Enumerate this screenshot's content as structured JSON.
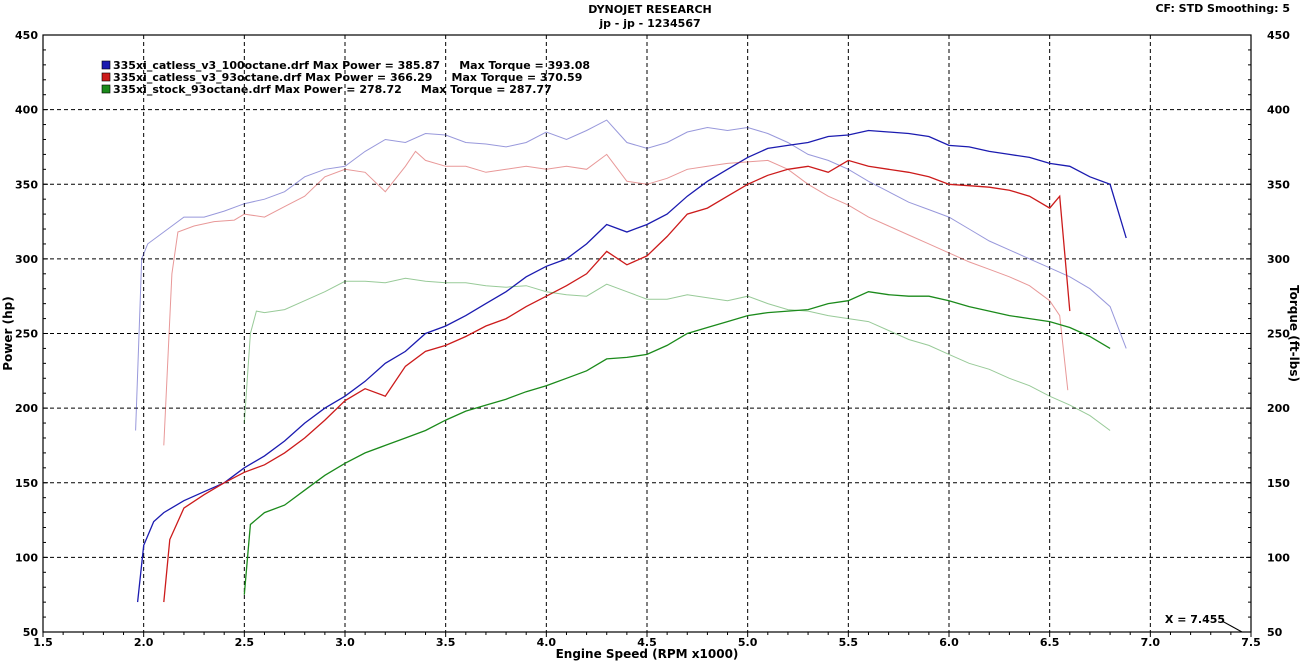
{
  "header": {
    "title": "DYNOJET RESEARCH",
    "subtitle": "jp - jp - 1234567",
    "correction": "CF: STD  Smoothing: 5"
  },
  "cursor": {
    "label": "X = 7.455"
  },
  "chart_data": {
    "type": "line",
    "title": "DYNOJET RESEARCH",
    "xlabel": "Engine Speed (RPM x1000)",
    "ylabel": "Power (hp)",
    "y2label": "Torque (ft-lbs)",
    "xlim": [
      1.5,
      7.5
    ],
    "ylim": [
      50,
      450
    ],
    "y2lim": [
      50,
      450
    ],
    "xticks": [
      1.5,
      2.0,
      2.5,
      3.0,
      3.5,
      4.0,
      4.5,
      5.0,
      5.5,
      6.0,
      6.5,
      7.0,
      7.5
    ],
    "yticks": [
      50,
      100,
      150,
      200,
      250,
      300,
      350,
      400,
      450
    ],
    "grid": true,
    "legend_position": "top-left",
    "legend": [
      "335xi_catless_v3_100octane.drf Max Power = 385.87     Max Torque = 393.08",
      "335xi_catless_v3_93octane.drf Max Power = 366.29     Max Torque = 370.59",
      "335xi_stock_93octane.drf Max Power = 278.72     Max Torque = 287.77"
    ],
    "series": [
      {
        "name": "335xi_catless_v3_100octane.drf",
        "color": "#1b1bb0",
        "max_power": 385.87,
        "max_torque": 393.08,
        "power": [
          [
            1.97,
            70
          ],
          [
            2.0,
            108
          ],
          [
            2.05,
            124
          ],
          [
            2.1,
            130
          ],
          [
            2.2,
            138
          ],
          [
            2.3,
            144
          ],
          [
            2.4,
            150
          ],
          [
            2.5,
            160
          ],
          [
            2.6,
            168
          ],
          [
            2.7,
            178
          ],
          [
            2.8,
            190
          ],
          [
            2.9,
            200
          ],
          [
            3.0,
            208
          ],
          [
            3.1,
            218
          ],
          [
            3.2,
            230
          ],
          [
            3.3,
            238
          ],
          [
            3.4,
            250
          ],
          [
            3.5,
            255
          ],
          [
            3.6,
            262
          ],
          [
            3.7,
            270
          ],
          [
            3.8,
            278
          ],
          [
            3.9,
            288
          ],
          [
            4.0,
            295
          ],
          [
            4.1,
            300
          ],
          [
            4.2,
            310
          ],
          [
            4.3,
            323
          ],
          [
            4.4,
            318
          ],
          [
            4.5,
            323
          ],
          [
            4.6,
            330
          ],
          [
            4.7,
            342
          ],
          [
            4.8,
            352
          ],
          [
            4.9,
            360
          ],
          [
            5.0,
            368
          ],
          [
            5.1,
            374
          ],
          [
            5.2,
            376
          ],
          [
            5.3,
            378
          ],
          [
            5.4,
            382
          ],
          [
            5.5,
            383
          ],
          [
            5.6,
            386
          ],
          [
            5.7,
            385
          ],
          [
            5.8,
            384
          ],
          [
            5.9,
            382
          ],
          [
            6.0,
            376
          ],
          [
            6.1,
            375
          ],
          [
            6.2,
            372
          ],
          [
            6.3,
            370
          ],
          [
            6.4,
            368
          ],
          [
            6.5,
            364
          ],
          [
            6.6,
            362
          ],
          [
            6.7,
            355
          ],
          [
            6.8,
            350
          ],
          [
            6.88,
            314
          ]
        ],
        "torque": [
          [
            1.96,
            185
          ],
          [
            1.99,
            300
          ],
          [
            2.02,
            310
          ],
          [
            2.1,
            318
          ],
          [
            2.2,
            328
          ],
          [
            2.3,
            328
          ],
          [
            2.4,
            332
          ],
          [
            2.5,
            337
          ],
          [
            2.6,
            340
          ],
          [
            2.7,
            345
          ],
          [
            2.8,
            355
          ],
          [
            2.9,
            360
          ],
          [
            3.0,
            362
          ],
          [
            3.1,
            372
          ],
          [
            3.2,
            380
          ],
          [
            3.3,
            378
          ],
          [
            3.4,
            384
          ],
          [
            3.5,
            383
          ],
          [
            3.6,
            378
          ],
          [
            3.7,
            377
          ],
          [
            3.8,
            375
          ],
          [
            3.9,
            378
          ],
          [
            4.0,
            385
          ],
          [
            4.1,
            380
          ],
          [
            4.2,
            386
          ],
          [
            4.3,
            393
          ],
          [
            4.4,
            378
          ],
          [
            4.5,
            374
          ],
          [
            4.6,
            378
          ],
          [
            4.7,
            385
          ],
          [
            4.8,
            388
          ],
          [
            4.9,
            386
          ],
          [
            5.0,
            388
          ],
          [
            5.1,
            384
          ],
          [
            5.2,
            378
          ],
          [
            5.3,
            370
          ],
          [
            5.4,
            366
          ],
          [
            5.5,
            360
          ],
          [
            5.6,
            352
          ],
          [
            5.7,
            345
          ],
          [
            5.8,
            338
          ],
          [
            5.9,
            333
          ],
          [
            6.0,
            328
          ],
          [
            6.1,
            320
          ],
          [
            6.2,
            312
          ],
          [
            6.3,
            306
          ],
          [
            6.4,
            300
          ],
          [
            6.5,
            294
          ],
          [
            6.6,
            288
          ],
          [
            6.7,
            280
          ],
          [
            6.8,
            268
          ],
          [
            6.88,
            240
          ]
        ]
      },
      {
        "name": "335xi_catless_v3_93octane.drf",
        "color": "#cc1b1b",
        "max_power": 366.29,
        "max_torque": 370.59,
        "power": [
          [
            2.1,
            70
          ],
          [
            2.13,
            112
          ],
          [
            2.2,
            133
          ],
          [
            2.3,
            142
          ],
          [
            2.4,
            150
          ],
          [
            2.5,
            157
          ],
          [
            2.6,
            162
          ],
          [
            2.7,
            170
          ],
          [
            2.8,
            180
          ],
          [
            2.9,
            192
          ],
          [
            3.0,
            205
          ],
          [
            3.1,
            213
          ],
          [
            3.2,
            208
          ],
          [
            3.3,
            228
          ],
          [
            3.4,
            238
          ],
          [
            3.5,
            242
          ],
          [
            3.6,
            248
          ],
          [
            3.7,
            255
          ],
          [
            3.8,
            260
          ],
          [
            3.9,
            268
          ],
          [
            4.0,
            275
          ],
          [
            4.1,
            282
          ],
          [
            4.2,
            290
          ],
          [
            4.3,
            305
          ],
          [
            4.4,
            296
          ],
          [
            4.5,
            302
          ],
          [
            4.6,
            315
          ],
          [
            4.7,
            330
          ],
          [
            4.8,
            334
          ],
          [
            4.9,
            342
          ],
          [
            5.0,
            350
          ],
          [
            5.1,
            356
          ],
          [
            5.2,
            360
          ],
          [
            5.3,
            362
          ],
          [
            5.4,
            358
          ],
          [
            5.5,
            366
          ],
          [
            5.6,
            362
          ],
          [
            5.7,
            360
          ],
          [
            5.8,
            358
          ],
          [
            5.9,
            355
          ],
          [
            6.0,
            350
          ],
          [
            6.1,
            349
          ],
          [
            6.2,
            348
          ],
          [
            6.3,
            346
          ],
          [
            6.4,
            342
          ],
          [
            6.5,
            334
          ],
          [
            6.55,
            342
          ],
          [
            6.6,
            265
          ]
        ],
        "torque": [
          [
            2.1,
            175
          ],
          [
            2.14,
            290
          ],
          [
            2.17,
            318
          ],
          [
            2.25,
            322
          ],
          [
            2.35,
            325
          ],
          [
            2.45,
            326
          ],
          [
            2.5,
            330
          ],
          [
            2.6,
            328
          ],
          [
            2.7,
            335
          ],
          [
            2.8,
            342
          ],
          [
            2.9,
            355
          ],
          [
            3.0,
            360
          ],
          [
            3.1,
            358
          ],
          [
            3.2,
            345
          ],
          [
            3.3,
            362
          ],
          [
            3.35,
            372
          ],
          [
            3.4,
            366
          ],
          [
            3.5,
            362
          ],
          [
            3.6,
            362
          ],
          [
            3.7,
            358
          ],
          [
            3.8,
            360
          ],
          [
            3.9,
            362
          ],
          [
            4.0,
            360
          ],
          [
            4.1,
            362
          ],
          [
            4.2,
            360
          ],
          [
            4.3,
            370
          ],
          [
            4.4,
            352
          ],
          [
            4.5,
            350
          ],
          [
            4.6,
            354
          ],
          [
            4.7,
            360
          ],
          [
            4.8,
            362
          ],
          [
            4.9,
            364
          ],
          [
            5.0,
            365
          ],
          [
            5.1,
            366
          ],
          [
            5.2,
            360
          ],
          [
            5.3,
            350
          ],
          [
            5.4,
            342
          ],
          [
            5.5,
            336
          ],
          [
            5.6,
            328
          ],
          [
            5.7,
            322
          ],
          [
            5.8,
            316
          ],
          [
            5.9,
            310
          ],
          [
            6.0,
            304
          ],
          [
            6.1,
            298
          ],
          [
            6.2,
            293
          ],
          [
            6.3,
            288
          ],
          [
            6.4,
            282
          ],
          [
            6.5,
            272
          ],
          [
            6.55,
            262
          ],
          [
            6.59,
            212
          ]
        ]
      },
      {
        "name": "335xi_stock_93octane.drf",
        "color": "#1b8a1b",
        "max_power": 278.72,
        "max_torque": 287.77,
        "power": [
          [
            2.5,
            75
          ],
          [
            2.53,
            122
          ],
          [
            2.6,
            130
          ],
          [
            2.7,
            135
          ],
          [
            2.8,
            145
          ],
          [
            2.9,
            155
          ],
          [
            3.0,
            163
          ],
          [
            3.1,
            170
          ],
          [
            3.2,
            175
          ],
          [
            3.3,
            180
          ],
          [
            3.4,
            185
          ],
          [
            3.5,
            192
          ],
          [
            3.6,
            198
          ],
          [
            3.7,
            202
          ],
          [
            3.8,
            206
          ],
          [
            3.9,
            211
          ],
          [
            4.0,
            215
          ],
          [
            4.1,
            220
          ],
          [
            4.2,
            225
          ],
          [
            4.3,
            233
          ],
          [
            4.4,
            234
          ],
          [
            4.5,
            236
          ],
          [
            4.6,
            242
          ],
          [
            4.7,
            250
          ],
          [
            4.8,
            254
          ],
          [
            4.9,
            258
          ],
          [
            5.0,
            262
          ],
          [
            5.1,
            264
          ],
          [
            5.2,
            265
          ],
          [
            5.3,
            266
          ],
          [
            5.4,
            270
          ],
          [
            5.5,
            272
          ],
          [
            5.6,
            278
          ],
          [
            5.7,
            276
          ],
          [
            5.8,
            275
          ],
          [
            5.9,
            275
          ],
          [
            6.0,
            272
          ],
          [
            6.1,
            268
          ],
          [
            6.2,
            265
          ],
          [
            6.3,
            262
          ],
          [
            6.4,
            260
          ],
          [
            6.5,
            258
          ],
          [
            6.6,
            254
          ],
          [
            6.7,
            248
          ],
          [
            6.8,
            240
          ]
        ],
        "torque": [
          [
            2.5,
            190
          ],
          [
            2.53,
            250
          ],
          [
            2.56,
            265
          ],
          [
            2.6,
            264
          ],
          [
            2.7,
            266
          ],
          [
            2.8,
            272
          ],
          [
            2.9,
            278
          ],
          [
            3.0,
            285
          ],
          [
            3.1,
            285
          ],
          [
            3.2,
            284
          ],
          [
            3.3,
            287
          ],
          [
            3.4,
            285
          ],
          [
            3.5,
            284
          ],
          [
            3.6,
            284
          ],
          [
            3.7,
            282
          ],
          [
            3.8,
            281
          ],
          [
            3.9,
            282
          ],
          [
            4.0,
            278
          ],
          [
            4.1,
            276
          ],
          [
            4.2,
            275
          ],
          [
            4.3,
            283
          ],
          [
            4.4,
            278
          ],
          [
            4.5,
            273
          ],
          [
            4.6,
            273
          ],
          [
            4.7,
            276
          ],
          [
            4.8,
            274
          ],
          [
            4.9,
            272
          ],
          [
            5.0,
            275
          ],
          [
            5.1,
            270
          ],
          [
            5.2,
            266
          ],
          [
            5.3,
            265
          ],
          [
            5.4,
            262
          ],
          [
            5.5,
            260
          ],
          [
            5.6,
            258
          ],
          [
            5.7,
            252
          ],
          [
            5.8,
            246
          ],
          [
            5.9,
            242
          ],
          [
            6.0,
            236
          ],
          [
            6.1,
            230
          ],
          [
            6.2,
            226
          ],
          [
            6.3,
            220
          ],
          [
            6.4,
            215
          ],
          [
            6.5,
            208
          ],
          [
            6.6,
            202
          ],
          [
            6.7,
            195
          ],
          [
            6.8,
            185
          ]
        ]
      }
    ]
  }
}
